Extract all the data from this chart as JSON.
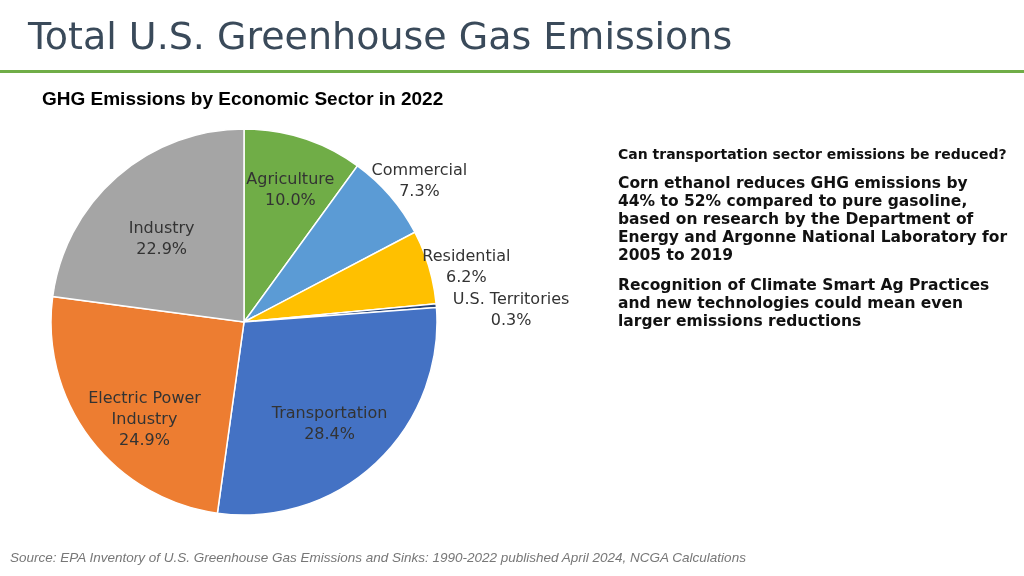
{
  "chart_data": {
    "type": "pie",
    "title": "Total U.S. Greenhouse Gas Emissions",
    "subtitle": "GHG Emissions by Economic Sector in 2022",
    "categories": [
      "Agriculture",
      "Commercial",
      "Residential",
      "U.S. Territories",
      "Transportation",
      "Electric Power Industry",
      "Industry"
    ],
    "values": [
      10.0,
      7.3,
      6.2,
      0.3,
      28.4,
      24.9,
      22.9
    ],
    "value_labels": [
      "10.0%",
      "7.3%",
      "6.2%",
      "0.3%",
      "28.4%",
      "24.9%",
      "22.9%"
    ],
    "colors": [
      "#70ad47",
      "#5b9bd5",
      "#ffc000",
      "#264478",
      "#4472c4",
      "#ed7d31",
      "#a5a5a5"
    ],
    "annotations": [
      "Can transportation sector emissions be reduced?",
      "Corn ethanol reduces GHG emissions by 44% to 52% compared to pure gasoline, based on research by the Department of Energy and Argonne National Laboratory for 2005 to 2019",
      "Recognition of Climate Smart Ag Practices and new technologies could mean even larger emissions reductions",
      "Source: EPA Inventory of U.S. Greenhouse Gas Emissions and Sinks: 1990-2022 published April 2024, NCGA Calculations"
    ]
  }
}
